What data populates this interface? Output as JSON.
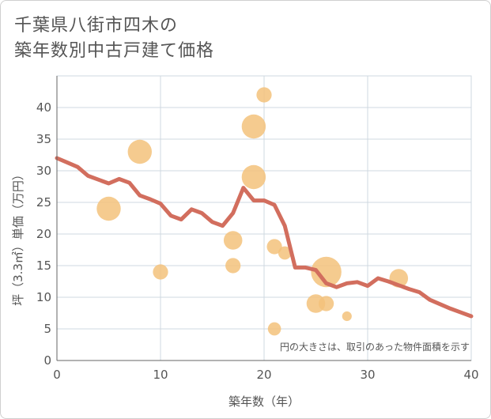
{
  "title_line1": "千葉県八街市四木の",
  "title_line2": "築年数別中古戸建て価格",
  "chart_data": {
    "type": "scatter",
    "title": "千葉県八街市四木の築年数別中古戸建て価格",
    "xlabel": "築年数（年）",
    "ylabel": "坪（3.3㎡）単価（万円）",
    "xlim": [
      0,
      40
    ],
    "ylim": [
      0,
      45
    ],
    "xticks": [
      0,
      10,
      20,
      30,
      40
    ],
    "yticks": [
      0,
      5,
      10,
      15,
      20,
      25,
      30,
      35,
      40
    ],
    "grid": true,
    "note": "円の大きさは、取引のあった物件面積を示す",
    "bubbles": [
      {
        "x": 5,
        "y": 24,
        "size": 5
      },
      {
        "x": 8,
        "y": 33,
        "size": 5
      },
      {
        "x": 10,
        "y": 14,
        "size": 2
      },
      {
        "x": 17,
        "y": 19,
        "size": 3
      },
      {
        "x": 17,
        "y": 15,
        "size": 2
      },
      {
        "x": 19,
        "y": 37,
        "size": 5
      },
      {
        "x": 19,
        "y": 29,
        "size": 5
      },
      {
        "x": 20,
        "y": 42,
        "size": 2
      },
      {
        "x": 21,
        "y": 18,
        "size": 2
      },
      {
        "x": 21,
        "y": 5,
        "size": 1.5
      },
      {
        "x": 22,
        "y": 17,
        "size": 1.5
      },
      {
        "x": 25,
        "y": 9,
        "size": 3
      },
      {
        "x": 26,
        "y": 9,
        "size": 2
      },
      {
        "x": 26,
        "y": 14,
        "size": 8
      },
      {
        "x": 28,
        "y": 7,
        "size": 0.8
      },
      {
        "x": 33,
        "y": 13,
        "size": 3
      }
    ],
    "trend_line": {
      "x": [
        0,
        1,
        2,
        3,
        4,
        5,
        6,
        7,
        8,
        9,
        10,
        11,
        12,
        13,
        14,
        15,
        16,
        17,
        18,
        19,
        20,
        21,
        22,
        23,
        24,
        25,
        26,
        27,
        28,
        29,
        30,
        31,
        32,
        33,
        34,
        35,
        36,
        37,
        38,
        39,
        40
      ],
      "y": [
        32,
        31.3,
        30.6,
        29.2,
        28.6,
        28,
        28.7,
        28.1,
        26.1,
        25.5,
        24.8,
        22.9,
        22.3,
        23.9,
        23.3,
        21.9,
        21.3,
        23.3,
        27.3,
        25.3,
        25.3,
        24.6,
        21.3,
        14.7,
        14.7,
        14.3,
        12.2,
        11.6,
        12.2,
        12.4,
        11.8,
        13,
        12.5,
        11.9,
        11.3,
        10.8,
        9.6,
        8.9,
        8.2,
        7.6,
        7
      ]
    }
  }
}
